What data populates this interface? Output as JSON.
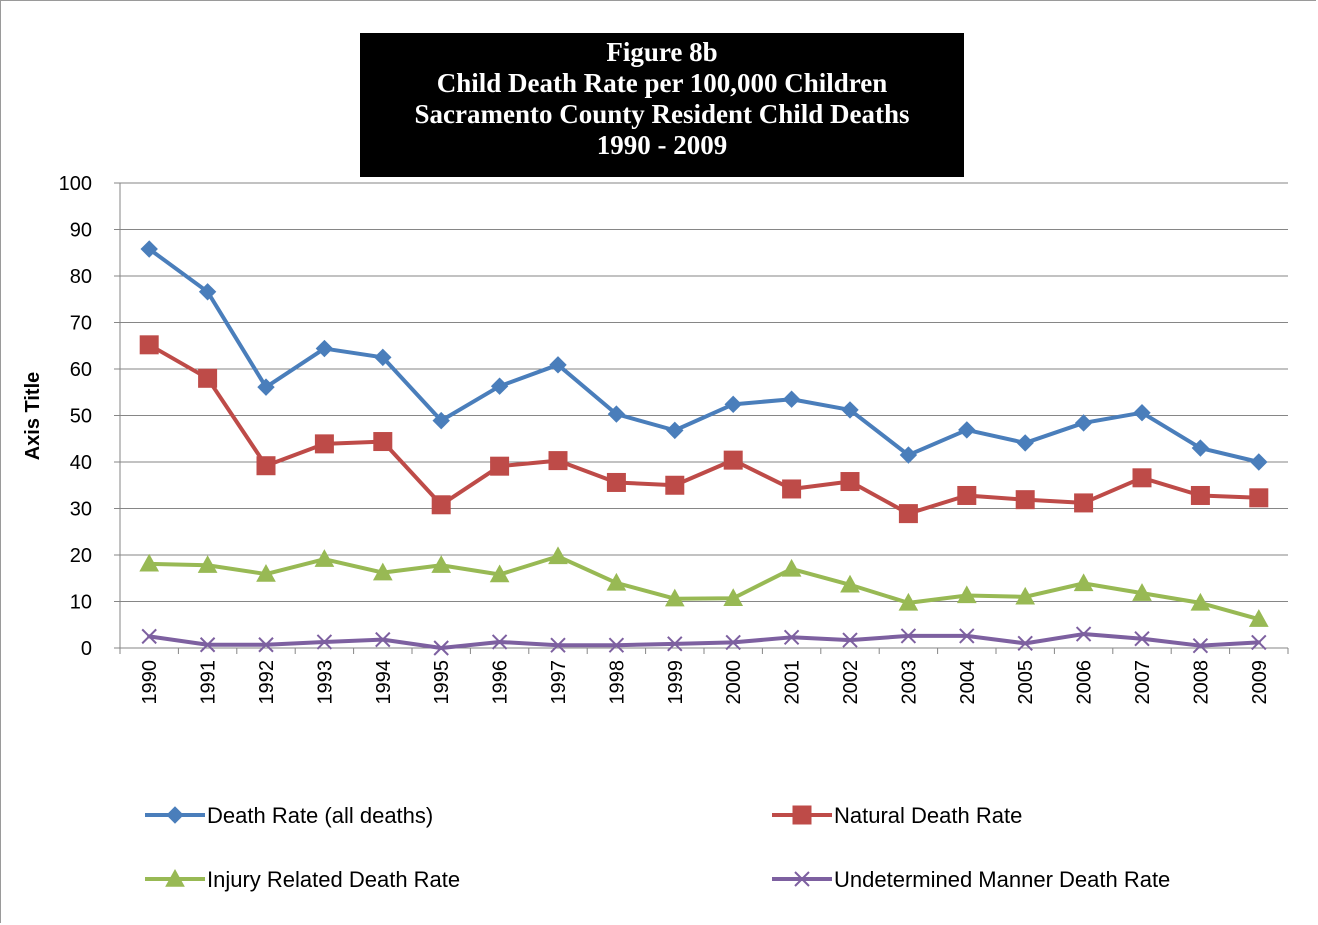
{
  "chart_data": {
    "type": "line",
    "title_lines": [
      "Figure 8b",
      "Child Death Rate per 100,000 Children",
      "Sacramento County Resident Child Deaths",
      "1990  - 2009"
    ],
    "ylabel": "Axis Title",
    "xlabel": "",
    "ylim": [
      0,
      100
    ],
    "yticks": [
      0,
      10,
      20,
      30,
      40,
      50,
      60,
      70,
      80,
      90,
      100
    ],
    "grid": true,
    "legend_position": "bottom",
    "categories": [
      "1990",
      "1991",
      "1992",
      "1993",
      "1994",
      "1995",
      "1996",
      "1997",
      "1998",
      "1999",
      "2000",
      "2001",
      "2002",
      "2003",
      "2004",
      "2005",
      "2006",
      "2007",
      "2008",
      "2009"
    ],
    "series": [
      {
        "name": "Death Rate (all deaths)",
        "color": "#4a7ebb",
        "marker": "diamond",
        "values": [
          85.8,
          76.6,
          56.1,
          64.4,
          62.5,
          48.9,
          56.3,
          60.9,
          50.3,
          46.8,
          52.4,
          53.5,
          51.2,
          41.5,
          46.9,
          44.1,
          48.4,
          50.6,
          43.0,
          40.0
        ]
      },
      {
        "name": "Natural Death Rate",
        "color": "#be4b48",
        "marker": "square",
        "values": [
          65.2,
          58.0,
          39.2,
          43.9,
          44.4,
          30.8,
          39.1,
          40.3,
          35.6,
          35.0,
          40.4,
          34.2,
          35.8,
          28.9,
          32.8,
          31.9,
          31.2,
          36.6,
          32.8,
          32.3
        ]
      },
      {
        "name": "Injury Related Death Rate",
        "color": "#98b954",
        "marker": "triangle",
        "values": [
          18.1,
          17.8,
          15.9,
          19.1,
          16.2,
          17.8,
          15.8,
          19.7,
          14.0,
          10.6,
          10.7,
          17.0,
          13.6,
          9.7,
          11.3,
          11.0,
          13.9,
          11.8,
          9.7,
          6.2
        ]
      },
      {
        "name": "Undetermined Manner Death Rate",
        "color": "#7d60a0",
        "marker": "x",
        "values": [
          2.5,
          0.7,
          0.7,
          1.3,
          1.8,
          0.0,
          1.3,
          0.6,
          0.6,
          0.9,
          1.2,
          2.3,
          1.7,
          2.6,
          2.6,
          1.0,
          3.0,
          2.0,
          0.5,
          1.2
        ]
      }
    ]
  }
}
